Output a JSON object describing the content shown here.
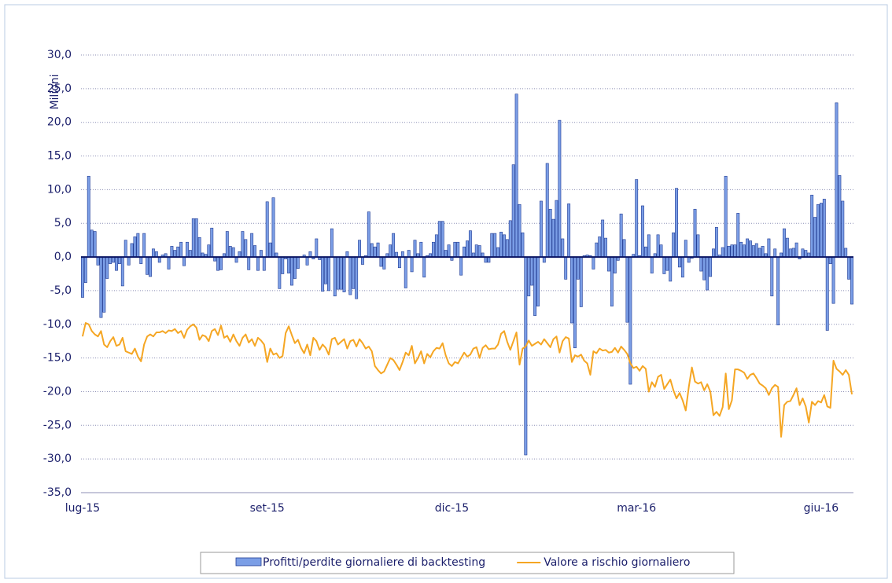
{
  "chart_data": {
    "type": "bar",
    "y_label": "Milioni",
    "ylim": [
      -35,
      30
    ],
    "yticks": [
      {
        "value": -35,
        "label": "-35,0"
      },
      {
        "value": -30,
        "label": "-30,0"
      },
      {
        "value": -25,
        "label": "-25,0"
      },
      {
        "value": -20,
        "label": "-20,0"
      },
      {
        "value": -15,
        "label": "-15,0"
      },
      {
        "value": -10,
        "label": "-10,0"
      },
      {
        "value": -5,
        "label": "-5,0"
      },
      {
        "value": 0,
        "label": "0,0"
      },
      {
        "value": 5,
        "label": "5,0"
      },
      {
        "value": 10,
        "label": "10,0"
      },
      {
        "value": 15,
        "label": "15,0"
      },
      {
        "value": 20,
        "label": "20,0"
      },
      {
        "value": 25,
        "label": "25,0"
      },
      {
        "value": 30,
        "label": "30,0"
      }
    ],
    "grid": true,
    "legend": "bottom",
    "categories": [
      "lug-15",
      null,
      null,
      null,
      null,
      null,
      null,
      null,
      null,
      null,
      null,
      null,
      null,
      null,
      null,
      null,
      null,
      null,
      null,
      null,
      null,
      null,
      null,
      null,
      null,
      null,
      null,
      null,
      null,
      null,
      null,
      null,
      null,
      null,
      null,
      null,
      null,
      null,
      null,
      null,
      null,
      null,
      null,
      null,
      null,
      null,
      null,
      null,
      null,
      null,
      null,
      null,
      null,
      null,
      null,
      null,
      null,
      null,
      null,
      null,
      "set-15",
      null,
      null,
      null,
      null,
      null,
      null,
      null,
      null,
      null,
      null,
      null,
      null,
      null,
      null,
      null,
      null,
      null,
      null,
      null,
      null,
      null,
      null,
      null,
      null,
      null,
      null,
      null,
      null,
      null,
      null,
      null,
      null,
      null,
      null,
      null,
      null,
      null,
      null,
      null,
      null,
      null,
      null,
      null,
      null,
      null,
      null,
      null,
      null,
      null,
      null,
      null,
      null,
      null,
      null,
      null,
      null,
      null,
      null,
      null,
      "dic-15",
      null,
      null,
      null,
      null,
      null,
      null,
      null,
      null,
      null,
      null,
      null,
      null,
      null,
      null,
      null,
      null,
      null,
      null,
      null,
      null,
      null,
      null,
      null,
      null,
      null,
      null,
      null,
      null,
      null,
      null,
      null,
      null,
      null,
      null,
      null,
      null,
      null,
      null,
      null,
      null,
      null,
      null,
      null,
      null,
      null,
      null,
      null,
      null,
      null,
      null,
      null,
      null,
      null,
      null,
      null,
      null,
      null,
      null,
      null,
      "mar-16",
      null,
      null,
      null,
      null,
      null,
      null,
      null,
      null,
      null,
      null,
      null,
      null,
      null,
      null,
      null,
      null,
      null,
      null,
      null,
      null,
      null,
      null,
      null,
      null,
      null,
      null,
      null,
      null,
      null,
      null,
      null,
      null,
      null,
      null,
      null,
      null,
      null,
      null,
      null,
      null,
      null,
      null,
      null,
      null,
      null,
      null,
      null,
      null,
      null,
      null,
      null,
      null,
      null,
      null,
      null,
      null,
      null,
      null,
      null,
      "giu-16",
      null,
      null,
      null,
      null,
      null,
      null,
      null,
      null,
      null,
      null
    ],
    "series": [
      {
        "name": "Profitti/perdite giornaliere di backtesting",
        "type": "bar",
        "color": "#7b9ee6",
        "values": [
          -6,
          -3.8,
          12,
          4,
          3.8,
          -1.2,
          -9,
          -8.2,
          -3.2,
          -1,
          -0.8,
          -2,
          -1,
          -4.3,
          2.5,
          -1.2,
          2,
          3,
          3.5,
          -1,
          3.5,
          -2.6,
          -2.9,
          1.2,
          0.8,
          -0.8,
          0.3,
          0.5,
          -1.8,
          1.6,
          1,
          1.5,
          2.2,
          -1.3,
          2.2,
          1,
          5.7,
          5.7,
          2.9,
          0.6,
          0.4,
          1.8,
          4.3,
          -0.6,
          -2,
          -1.9,
          0.5,
          3.8,
          1.6,
          1.4,
          -0.8,
          0.8,
          3.8,
          2.6,
          -1.9,
          3.5,
          1.7,
          -2,
          1,
          -2,
          8.2,
          2.1,
          8.8,
          0.6,
          -4.7,
          -2.5,
          -0.3,
          -2.4,
          -4.2,
          -3.2,
          -1.7,
          0,
          0.3,
          -1.2,
          0.8,
          -0.3,
          2.7,
          -0.4,
          -5.1,
          -4,
          -5,
          4.2,
          -5.8,
          -4.8,
          -4.8,
          -5.2,
          0.8,
          -5.6,
          -4.7,
          -6.2,
          2.5,
          -1.1,
          0.2,
          6.7,
          2,
          1.5,
          2.1,
          -1.4,
          -1.8,
          0.5,
          1.8,
          3.5,
          0.7,
          -1.6,
          0.8,
          -4.6,
          1,
          -2.2,
          2.5,
          0.5,
          2.2,
          -3,
          0.2,
          0.5,
          2.2,
          3.3,
          5.3,
          5.3,
          1,
          1.8,
          -0.5,
          2.2,
          2.2,
          -2.7,
          1.5,
          2.4,
          3.9,
          0.6,
          1.8,
          1.7,
          0.6,
          -0.8,
          -0.8,
          3.5,
          3.5,
          1.4,
          3.7,
          3.3,
          2.6,
          5.4,
          13.7,
          24.2,
          7.8,
          3.6,
          -29.4,
          -5.8,
          -4.2,
          -8.7,
          -7.3,
          8.3,
          -0.8,
          13.9,
          7.1,
          5.6,
          8.4,
          20.3,
          2.7,
          -3.3,
          7.9,
          -9.8,
          -13.5,
          -3.3,
          -7.4,
          0.2,
          0.3,
          0.2,
          -1.8,
          2.1,
          3,
          5.5,
          2.8,
          -2.1,
          -7.3,
          -2.4,
          -0.5,
          6.4,
          2.6,
          -9.7,
          -18.9,
          0.4,
          11.5,
          0.2,
          7.6,
          1.5,
          3.3,
          -2.4,
          0.5,
          3.3,
          1.8,
          -2.5,
          -2,
          -3.6,
          3.6,
          10.2,
          -1.5,
          -3,
          2.5,
          -0.8,
          -0.2,
          7.1,
          3.3,
          -2.1,
          -3.4,
          -4.9,
          -2.9,
          1.2,
          4.4,
          0.3,
          1.4,
          12,
          1.6,
          1.8,
          1.8,
          6.5,
          2.2,
          1.8,
          2.7,
          2.4,
          1.7,
          2,
          1.3,
          1.6,
          0.5,
          2.7,
          -5.8,
          1.2,
          -10.1,
          0.6,
          4.2,
          2.8,
          1.2,
          1.3,
          2.1,
          -0.3,
          1.2,
          1,
          0.6,
          9.2,
          5.9,
          7.8,
          8,
          8.6,
          -10.9,
          -1,
          -6.9,
          22.9,
          12.1,
          8.3,
          1.3,
          -3.3,
          -7
        ]
      },
      {
        "name": "Valore a rischio giornaliero",
        "type": "line",
        "color": "#f5a623",
        "values": [
          -11.8,
          -9.8,
          -10,
          -11,
          -11.5,
          -11.8,
          -11,
          -13,
          -13.4,
          -12.5,
          -11.9,
          -13.2,
          -13,
          -12,
          -14,
          -14.2,
          -14.4,
          -13.6,
          -14.8,
          -15.5,
          -13,
          -11.8,
          -11.5,
          -11.8,
          -11.2,
          -11.2,
          -11,
          -11.3,
          -10.9,
          -11,
          -10.7,
          -11.3,
          -11,
          -12,
          -10.8,
          -10.3,
          -10,
          -10.5,
          -12.3,
          -11.6,
          -11.8,
          -12.5,
          -11,
          -10.7,
          -11.6,
          -10.2,
          -12,
          -11.7,
          -12.6,
          -11.5,
          -12.5,
          -13.2,
          -12,
          -11.5,
          -12.7,
          -12.2,
          -13.2,
          -12,
          -12.4,
          -13,
          -15.6,
          -13.6,
          -14.5,
          -14.3,
          -15,
          -14.7,
          -11.3,
          -10.3,
          -11.6,
          -12.8,
          -12.3,
          -13.5,
          -14.3,
          -13,
          -14.6,
          -12,
          -12.5,
          -13.8,
          -13,
          -13.5,
          -14.5,
          -12.2,
          -12,
          -13,
          -12.6,
          -12.2,
          -13.6,
          -12.5,
          -12.3,
          -13.3,
          -12.2,
          -12.8,
          -13.6,
          -13.3,
          -14,
          -16.2,
          -16.8,
          -17.3,
          -17,
          -16,
          -15,
          -15.3,
          -16,
          -16.8,
          -15.6,
          -14.2,
          -14.6,
          -13.2,
          -15.8,
          -15,
          -14,
          -15.8,
          -14.4,
          -14.9,
          -14,
          -13.5,
          -13.6,
          -12.8,
          -14.6,
          -15.8,
          -16.2,
          -15.6,
          -15.8,
          -15,
          -14.2,
          -14.8,
          -14.5,
          -13.6,
          -13.4,
          -15,
          -13.5,
          -13.1,
          -13.7,
          -13.6,
          -13.6,
          -13,
          -11.4,
          -11,
          -12.6,
          -13.8,
          -12.5,
          -11.2,
          -16,
          -13.6,
          -13.3,
          -12.4,
          -13.2,
          -12.9,
          -12.6,
          -13,
          -12.2,
          -12.8,
          -13.4,
          -12.2,
          -11.8,
          -14.2,
          -12.5,
          -11.9,
          -12.1,
          -15.6,
          -14.6,
          -14.8,
          -14.5,
          -15.4,
          -15.8,
          -17.5,
          -14,
          -14.3,
          -13.6,
          -13.9,
          -13.8,
          -14.2,
          -14.1,
          -13.5,
          -14.2,
          -13.3,
          -13.8,
          -14.4,
          -15.8,
          -16.5,
          -16.3,
          -16.9,
          -16.2,
          -16.6,
          -20,
          -18.6,
          -19.3,
          -17.8,
          -17.5,
          -19.6,
          -18.9,
          -18.2,
          -19.8,
          -21,
          -20.2,
          -21.3,
          -22.8,
          -19.3,
          -16.4,
          -18.5,
          -18.8,
          -18.6,
          -19.8,
          -18.9,
          -20,
          -23.5,
          -23,
          -23.6,
          -22.3,
          -17.3,
          -22.6,
          -21.3,
          -16.7,
          -16.7,
          -16.9,
          -17.2,
          -18.1,
          -17.5,
          -17.3,
          -18,
          -18.8,
          -19.1,
          -19.5,
          -20.5,
          -19.5,
          -19,
          -19.3,
          -26.7,
          -22,
          -21.5,
          -21.4,
          -20.5,
          -19.5,
          -22,
          -21,
          -22.2,
          -24.6,
          -21.5,
          -22,
          -21.4,
          -21.6,
          -20.5,
          -22.2,
          -22.4,
          -15.4,
          -16.6,
          -17,
          -17.5,
          -16.8,
          -17.5,
          -20.4
        ]
      }
    ]
  }
}
